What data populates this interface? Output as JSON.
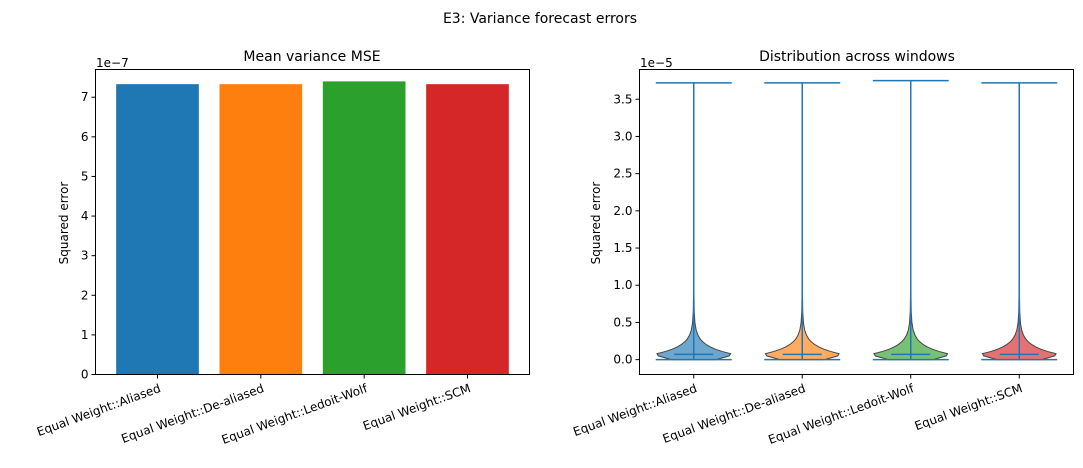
{
  "figure": {
    "suptitle": "E3: Variance forecast errors"
  },
  "chart_data": [
    {
      "type": "bar",
      "title": "Mean variance MSE",
      "xlabel": "",
      "ylabel": "Squared error",
      "offset_text": "1e−7",
      "scale": 1e-07,
      "categories": [
        "Equal Weight::Aliased",
        "Equal Weight::De-aliased",
        "Equal Weight::Ledoit-Wolf",
        "Equal Weight::SCM"
      ],
      "values": [
        7.33e-07,
        7.33e-07,
        7.4e-07,
        7.33e-07
      ],
      "colors": [
        "#1f77b4",
        "#ff7f0e",
        "#2ca02c",
        "#d62728"
      ],
      "ylim": [
        0,
        7.7e-07
      ],
      "yticks": [
        0,
        1e-07,
        2e-07,
        3e-07,
        4e-07,
        5e-07,
        6e-07,
        7e-07
      ],
      "ytick_labels": [
        "0",
        "1",
        "2",
        "3",
        "4",
        "5",
        "6",
        "7"
      ],
      "grid": false
    },
    {
      "type": "violin",
      "title": "Distribution across windows",
      "xlabel": "",
      "ylabel": "Squared error",
      "offset_text": "1e−5",
      "scale": 1e-05,
      "categories": [
        "Equal Weight::Aliased",
        "Equal Weight::De-aliased",
        "Equal Weight::Ledoit-Wolf",
        "Equal Weight::SCM"
      ],
      "series": [
        {
          "min": 0.0,
          "max": 3.72e-05,
          "median": 5e-07,
          "mean": 7e-07
        },
        {
          "min": 0.0,
          "max": 3.72e-05,
          "median": 5e-07,
          "mean": 7e-07
        },
        {
          "min": 0.0,
          "max": 3.75e-05,
          "median": 5e-07,
          "mean": 7e-07
        },
        {
          "min": 0.0,
          "max": 3.72e-05,
          "median": 5e-07,
          "mean": 7e-07
        }
      ],
      "fill_colors": [
        "#1f77b4",
        "#ff7f0e",
        "#2ca02c",
        "#d62728"
      ],
      "line_color": "#1f77b4",
      "ylim": [
        -2e-06,
        3.9e-05
      ],
      "yticks": [
        0,
        5e-06,
        1e-05,
        1.5e-05,
        2e-05,
        2.5e-05,
        3e-05,
        3.5e-05
      ],
      "ytick_labels": [
        "0.0",
        "0.5",
        "1.0",
        "1.5",
        "2.0",
        "2.5",
        "3.0",
        "3.5"
      ],
      "grid": false
    }
  ]
}
